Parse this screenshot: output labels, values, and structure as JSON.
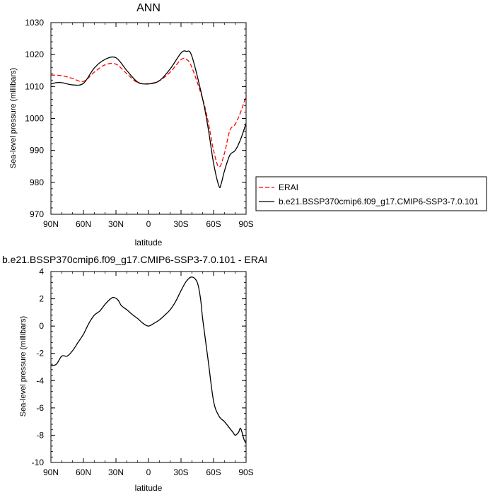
{
  "chart_data": [
    {
      "type": "line",
      "title": "ANN",
      "xlabel": "latitude",
      "ylabel": "Sea-level pressure (millibars)",
      "x_ticks": [
        "90N",
        "60N",
        "30N",
        "0",
        "30S",
        "60S",
        "90S"
      ],
      "y_ticks": [
        "970",
        "980",
        "990",
        "1000",
        "1010",
        "1020",
        "1030"
      ],
      "xlim": [
        90,
        -90
      ],
      "ylim": [
        970,
        1030
      ],
      "legend_position": "right",
      "series": [
        {
          "name": "ERAI",
          "color": "#ff0000",
          "dash": "dashed",
          "x": [
            90,
            80,
            70,
            60,
            50,
            40,
            30,
            20,
            10,
            0,
            -10,
            -20,
            -30,
            -35,
            -40,
            -50,
            -55,
            -60,
            -65,
            -70,
            -75,
            -80,
            -85,
            -90
          ],
          "y": [
            1013.6,
            1013.4,
            1012.5,
            1011.6,
            1014.5,
            1016.8,
            1017,
            1014,
            1011.2,
            1010.9,
            1011.8,
            1014.5,
            1018.4,
            1018.5,
            1016,
            1006,
            999,
            990,
            984.8,
            989,
            996.2,
            998.2,
            1002,
            1007
          ]
        },
        {
          "name": "b.e21.BSSP370cmip6.f09_g17.CMIP6-SSP3-7.0.101",
          "color": "#000000",
          "dash": "solid",
          "x": [
            90,
            85,
            80,
            70,
            60,
            50,
            40,
            30,
            20,
            10,
            0,
            -10,
            -20,
            -30,
            -35,
            -40,
            -50,
            -55,
            -60,
            -65,
            -67,
            -70,
            -75,
            -80,
            -85,
            -90
          ],
          "y": [
            1010.8,
            1011.2,
            1011.2,
            1010.5,
            1011,
            1015.8,
            1018.5,
            1019,
            1015,
            1011.4,
            1010.8,
            1011.8,
            1015.5,
            1020.5,
            1021,
            1019.5,
            1006,
            997,
            986,
            978.8,
            979.5,
            983.5,
            988.5,
            990,
            993.5,
            998.5
          ]
        }
      ]
    },
    {
      "type": "line",
      "title": "b.e21.BSSP370cmip6.f09_g17.CMIP6-SSP3-7.0.101 - ERAI",
      "xlabel": "latitude",
      "ylabel": "Sea-level pressure (millibars)",
      "x_ticks": [
        "90N",
        "60N",
        "30N",
        "0",
        "30S",
        "60S",
        "90S"
      ],
      "y_ticks": [
        "-10",
        "-8",
        "-6",
        "-4",
        "-2",
        "0",
        "2",
        "4"
      ],
      "xlim": [
        90,
        -90
      ],
      "ylim": [
        -10,
        4
      ],
      "series": [
        {
          "name": "",
          "color": "#000000",
          "dash": "solid",
          "x": [
            90,
            85,
            80,
            75,
            70,
            65,
            60,
            55,
            50,
            45,
            40,
            35,
            32,
            28,
            25,
            20,
            15,
            10,
            5,
            0,
            -5,
            -10,
            -15,
            -20,
            -25,
            -30,
            -35,
            -40,
            -45,
            -48,
            -50,
            -55,
            -60,
            -65,
            -70,
            -75,
            -78,
            -80,
            -83,
            -85,
            -88,
            -90
          ],
          "y": [
            -2.9,
            -2.8,
            -2.2,
            -2.2,
            -1.8,
            -1.2,
            -0.6,
            0.2,
            0.8,
            1.1,
            1.6,
            2.0,
            2.1,
            1.9,
            1.5,
            1.2,
            0.85,
            0.55,
            0.2,
            0.0,
            0.2,
            0.45,
            0.8,
            1.2,
            1.8,
            2.6,
            3.3,
            3.6,
            3.2,
            2.0,
            0.5,
            -2.5,
            -5.5,
            -6.6,
            -7.0,
            -7.5,
            -7.8,
            -8.0,
            -7.8,
            -7.5,
            -8.3,
            -8.6
          ]
        }
      ]
    }
  ],
  "legend": {
    "entries": [
      {
        "label": "ERAI",
        "color": "#ff0000",
        "dash": "dashed"
      },
      {
        "label": "b.e21.BSSP370cmip6.f09_g17.CMIP6-SSP3-7.0.101",
        "color": "#000000",
        "dash": "solid"
      }
    ]
  }
}
